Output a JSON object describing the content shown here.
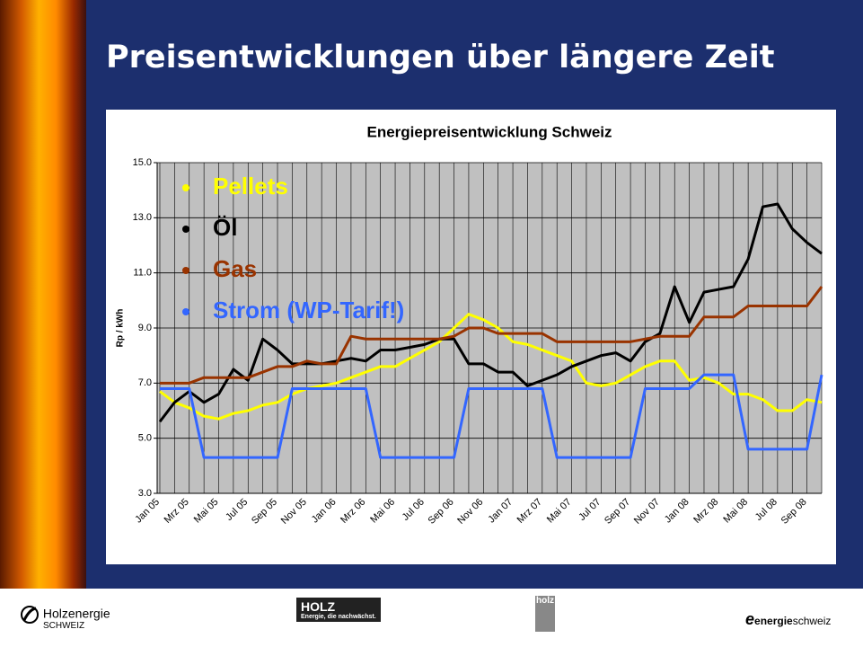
{
  "slide_title": "Preisentwicklungen über längere Zeit",
  "footer": [
    "Holzenergie",
    "SCHWEIZ",
    "HOLZ",
    "Energie, die nachwächst.",
    "holz",
    "energie",
    "schweiz"
  ],
  "chart_data": {
    "type": "line",
    "title": "Energiepreisentwicklung Schweiz",
    "y_label": "Rp / kWh",
    "categories": [
      "Jan 05",
      null,
      "Mrz 05",
      null,
      "Mai 05",
      null,
      "Jul 05",
      null,
      "Sep 05",
      null,
      "Nov 05",
      null,
      "Jan 06",
      null,
      "Mrz 06",
      null,
      "Mai 06",
      null,
      "Jul 06",
      null,
      "Sep 06",
      null,
      "Nov 06",
      null,
      "Jan 07",
      null,
      "Mrz 07",
      null,
      "Mai 07",
      null,
      "Jul 07",
      null,
      "Sep 07",
      null,
      "Nov 07",
      null,
      "Jan 08",
      null,
      "Mrz 08",
      null,
      "Mai 08",
      null,
      "Jul 08",
      null,
      "Sep 08",
      null
    ],
    "ylim": [
      3,
      15
    ],
    "yticks": [
      {
        "value": 3,
        "label": "3.0"
      },
      {
        "value": 5,
        "label": "5.0"
      },
      {
        "value": 7,
        "label": "7.0"
      },
      {
        "value": 9,
        "label": "9.0"
      },
      {
        "value": 11,
        "label": "11.0"
      },
      {
        "value": 13,
        "label": "13.0"
      },
      {
        "value": 15,
        "label": "15.0"
      }
    ],
    "grid": true,
    "legend": "top-left",
    "series": [
      {
        "name": "Pellets",
        "color": "#ffff00",
        "values": [
          6.7,
          6.3,
          6.1,
          5.8,
          5.7,
          5.9,
          6.0,
          6.2,
          6.3,
          6.6,
          6.8,
          6.9,
          7.0,
          7.2,
          7.4,
          7.6,
          7.6,
          7.9,
          8.2,
          8.5,
          9.0,
          9.5,
          9.3,
          9.0,
          8.5,
          8.4,
          8.2,
          8.0,
          7.8,
          7.0,
          6.9,
          7.0,
          7.3,
          7.6,
          7.8,
          7.8,
          7.1,
          7.2,
          7.0,
          6.6,
          6.6,
          6.4,
          6.0,
          6.0,
          6.4,
          6.3
        ]
      },
      {
        "name": "Öl",
        "color": "#000000",
        "values": [
          5.6,
          6.3,
          6.7,
          6.3,
          6.6,
          7.5,
          7.1,
          8.6,
          8.2,
          7.7,
          7.7,
          7.7,
          7.8,
          7.9,
          7.8,
          8.2,
          8.2,
          8.3,
          8.4,
          8.6,
          8.6,
          7.7,
          7.7,
          7.4,
          7.4,
          6.9,
          7.1,
          7.3,
          7.6,
          7.8,
          8.0,
          8.1,
          7.8,
          8.5,
          8.8,
          10.5,
          9.2,
          10.3,
          10.4,
          10.5,
          11.5,
          13.4,
          13.5,
          12.6,
          12.1,
          11.7
        ]
      },
      {
        "name": "Gas",
        "color": "#993300",
        "values": [
          7.0,
          7.0,
          7.0,
          7.2,
          7.2,
          7.2,
          7.2,
          7.4,
          7.6,
          7.6,
          7.8,
          7.7,
          7.7,
          8.7,
          8.6,
          8.6,
          8.6,
          8.6,
          8.6,
          8.6,
          8.7,
          9.0,
          9.0,
          8.8,
          8.8,
          8.8,
          8.8,
          8.5,
          8.5,
          8.5,
          8.5,
          8.5,
          8.5,
          8.6,
          8.7,
          8.7,
          8.7,
          9.4,
          9.4,
          9.4,
          9.8,
          9.8,
          9.8,
          9.8,
          9.8,
          10.5
        ]
      },
      {
        "name": "Strom (WP-Tarif!)",
        "color": "#3366ff",
        "values": [
          6.8,
          6.8,
          6.8,
          4.3,
          4.3,
          4.3,
          4.3,
          4.3,
          4.3,
          6.8,
          6.8,
          6.8,
          6.8,
          6.8,
          6.8,
          4.3,
          4.3,
          4.3,
          4.3,
          4.3,
          4.3,
          6.8,
          6.8,
          6.8,
          6.8,
          6.8,
          6.8,
          4.3,
          4.3,
          4.3,
          4.3,
          4.3,
          4.3,
          6.8,
          6.8,
          6.8,
          6.8,
          7.3,
          7.3,
          7.3,
          4.6,
          4.6,
          4.6,
          4.6,
          4.6,
          7.3
        ]
      }
    ]
  }
}
